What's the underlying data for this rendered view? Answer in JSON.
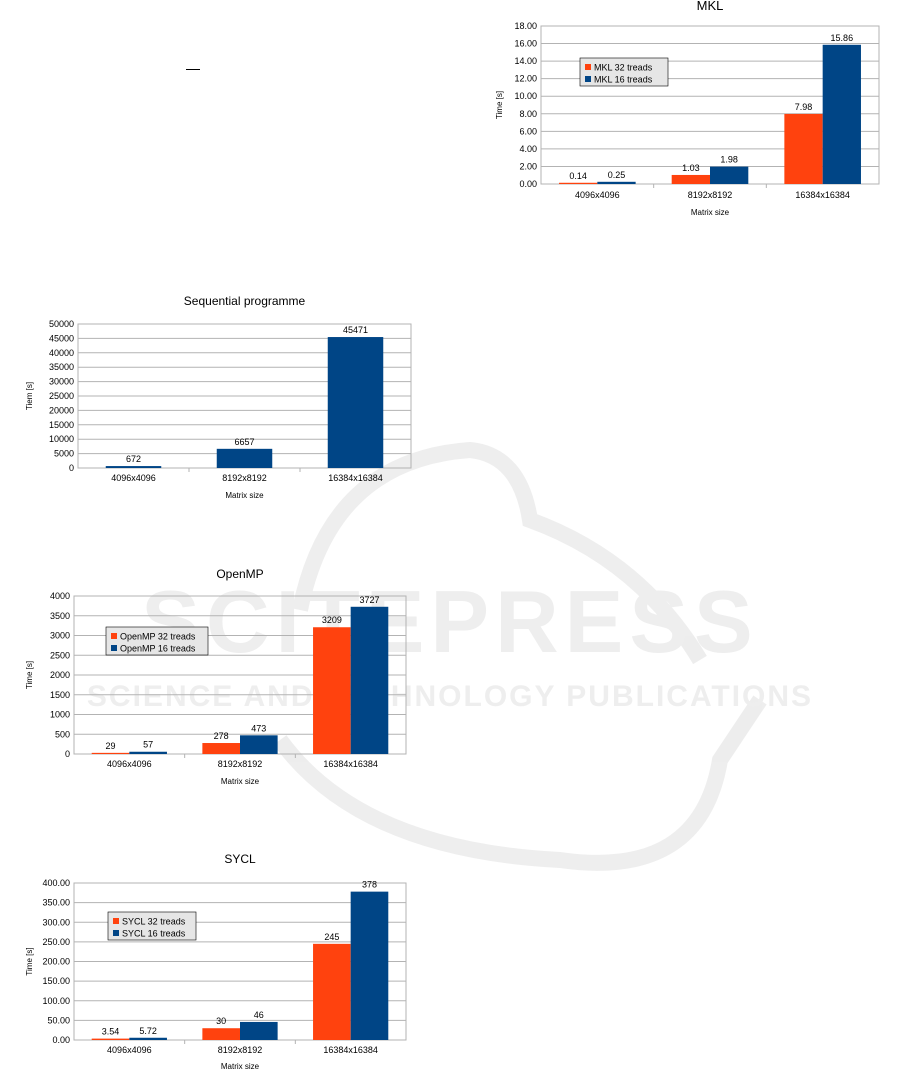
{
  "watermark": {
    "brand": "SCITEPRESS",
    "tagline": "SCIENCE AND TECHNOLOGY PUBLICATIONS"
  },
  "colors": {
    "series_32": "#ff420e",
    "series_16": "#004586",
    "grid": "#b3b3b3",
    "axis": "#b3b3b3",
    "legend_bg": "#e6e6e6"
  },
  "chart_data": [
    {
      "id": "mkl",
      "type": "bar",
      "title": "MKL",
      "xlabel": "Matrix size",
      "ylabel": "Time [s]",
      "categories": [
        "4096x4096",
        "8192x8192",
        "16384x16384"
      ],
      "series": [
        {
          "name": "MKL 32 treads",
          "values": [
            0.14,
            1.03,
            7.98
          ],
          "labels": [
            "0.14",
            "1.03",
            "7.98"
          ]
        },
        {
          "name": "MKL 16 treads",
          "values": [
            0.25,
            1.98,
            15.86
          ],
          "labels": [
            "0.25",
            "1.98",
            "15.86"
          ]
        }
      ],
      "ylim": [
        0,
        18
      ],
      "yticks": [
        0,
        2,
        4,
        6,
        8,
        10,
        12,
        14,
        16,
        18
      ],
      "ytick_decimals": 2,
      "grid": true,
      "legend": "top-left"
    },
    {
      "id": "seq",
      "type": "bar",
      "title": "Sequential programme",
      "xlabel": "Matrix size",
      "ylabel": "Tiem [s]",
      "categories": [
        "4096x4096",
        "8192x8192",
        "16384x16384"
      ],
      "series": [
        {
          "values": [
            672,
            6657,
            45471
          ],
          "labels": [
            "672",
            "6657",
            "45471"
          ]
        }
      ],
      "ylim": [
        0,
        50000
      ],
      "yticks": [
        0,
        5000,
        10000,
        15000,
        20000,
        25000,
        30000,
        35000,
        40000,
        45000,
        50000
      ],
      "ytick_decimals": 0,
      "grid": true,
      "legend": "none"
    },
    {
      "id": "openmp",
      "type": "bar",
      "title": "OpenMP",
      "xlabel": "Matrix size",
      "ylabel": "Time [s]",
      "categories": [
        "4096x4096",
        "8192x8192",
        "16384x16384"
      ],
      "series": [
        {
          "name": "OpenMP 32 treads",
          "values": [
            29,
            278,
            3209
          ],
          "labels": [
            "29",
            "278",
            "3209"
          ]
        },
        {
          "name": "OpenMP 16 treads",
          "values": [
            57,
            473,
            3727
          ],
          "labels": [
            "57",
            "473",
            "3727"
          ]
        }
      ],
      "ylim": [
        0,
        4000
      ],
      "yticks": [
        0,
        500,
        1000,
        1500,
        2000,
        2500,
        3000,
        3500,
        4000
      ],
      "ytick_decimals": 0,
      "grid": true,
      "legend": "top-left"
    },
    {
      "id": "sycl",
      "type": "bar",
      "title": "SYCL",
      "xlabel": "Matrix size",
      "ylabel": "Time [s]",
      "categories": [
        "4096x4096",
        "8192x8192",
        "16384x16384"
      ],
      "series": [
        {
          "name": "SYCL 32 treads",
          "values": [
            3.54,
            30,
            245
          ],
          "labels": [
            "3.54",
            "30",
            "245"
          ]
        },
        {
          "name": "SYCL 16 treads",
          "values": [
            5.72,
            46,
            378
          ],
          "labels": [
            "5.72",
            "46",
            "378"
          ]
        }
      ],
      "ylim": [
        0,
        400
      ],
      "yticks": [
        0,
        50,
        100,
        150,
        200,
        250,
        300,
        350,
        400
      ],
      "ytick_decimals": 2,
      "grid": true,
      "legend": "top-left"
    }
  ]
}
